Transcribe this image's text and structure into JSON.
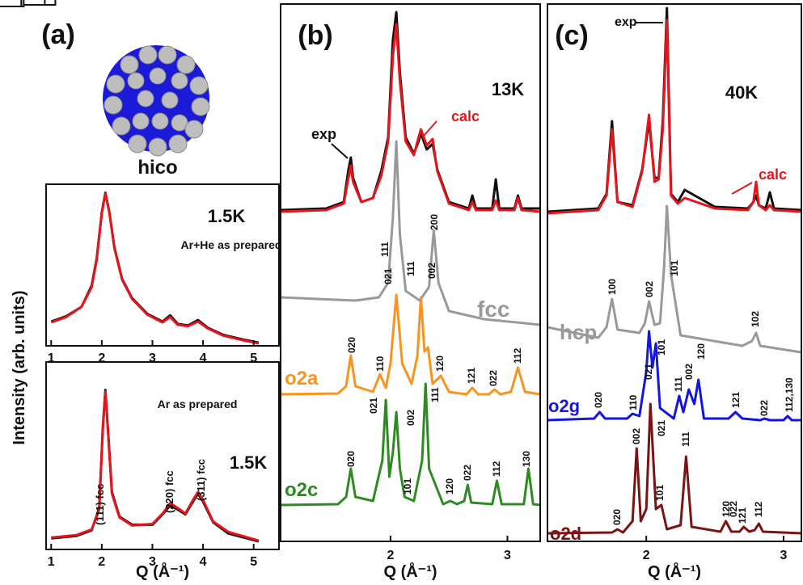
{
  "chart_data": [
    {
      "type": "line",
      "annotations": [
        "(a)",
        "hico",
        "1.5K",
        "Ar+He as prepared"
      ],
      "xlim": [
        0.9,
        5.5
      ],
      "ylim": [
        5,
        212
      ],
      "xticks": [
        1,
        2,
        3,
        4,
        5
      ],
      "series": [
        {
          "color": "#111111",
          "x": [
            1.0,
            1.3,
            1.6,
            1.8,
            1.9,
            2.0,
            2.07,
            2.15,
            2.25,
            2.4,
            2.6,
            2.9,
            3.2,
            3.35,
            3.5,
            3.7,
            3.9,
            4.1,
            4.4,
            4.8,
            5.1
          ],
          "values": [
            36,
            43,
            55,
            82,
            117,
            176,
            201,
            176,
            131,
            91,
            66,
            46,
            36,
            44,
            33,
            31,
            38,
            28,
            19,
            13,
            9
          ]
        },
        {
          "color": "#e8141b",
          "x": [
            1.0,
            1.3,
            1.6,
            1.8,
            1.9,
            2.0,
            2.07,
            2.15,
            2.25,
            2.4,
            2.6,
            2.9,
            3.2,
            3.35,
            3.5,
            3.7,
            3.9,
            4.1,
            4.4,
            4.8,
            5.1
          ],
          "values": [
            35,
            42,
            55,
            80,
            115,
            175,
            200,
            175,
            130,
            90,
            65,
            45,
            35,
            42,
            32,
            30,
            36,
            27,
            18,
            12,
            8
          ]
        }
      ]
    },
    {
      "type": "line",
      "annotations": [
        "Ar as prepared",
        "(111) fcc",
        "(220) fcc",
        "(311) fcc",
        "1.5K"
      ],
      "xlabel": "Q (Å⁻¹)",
      "ylabel": "Intensity (arb. units)",
      "xlim": [
        0.9,
        5.5
      ],
      "ylim": [
        0,
        235
      ],
      "xticks": [
        1,
        2,
        3,
        4,
        5
      ],
      "series": [
        {
          "color": "#111111",
          "x": [
            1.0,
            1.5,
            1.8,
            1.95,
            2.02,
            2.07,
            2.12,
            2.2,
            2.35,
            2.6,
            3.0,
            3.2,
            3.35,
            3.5,
            3.65,
            3.8,
            3.9,
            4.0,
            4.2,
            4.5,
            5.1
          ],
          "values": [
            14,
            17,
            24,
            52,
            152,
            200,
            152,
            72,
            41,
            31,
            31,
            44,
            55,
            50,
            44,
            60,
            70,
            60,
            34,
            20,
            10
          ]
        },
        {
          "color": "#e8141b",
          "x": [
            1.0,
            1.5,
            1.8,
            1.95,
            2.02,
            2.07,
            2.12,
            2.2,
            2.35,
            2.6,
            3.0,
            3.2,
            3.35,
            3.5,
            3.65,
            3.8,
            3.9,
            4.0,
            4.2,
            4.5,
            5.1
          ],
          "values": [
            15,
            18,
            25,
            50,
            150,
            198,
            150,
            70,
            40,
            30,
            32,
            45,
            58,
            52,
            45,
            62,
            72,
            62,
            35,
            22,
            11
          ]
        }
      ]
    },
    {
      "type": "line",
      "annotations": [
        "(b)",
        "13K"
      ],
      "xlabel": "Q (Å⁻¹)",
      "xlim": [
        1.06,
        3.28
      ],
      "ylim": [
        20,
        685
      ],
      "xticks": [
        2,
        3
      ],
      "series": [
        {
          "name": "exp",
          "color": "#111111",
          "x": [
            1.06,
            1.45,
            1.6,
            1.64,
            1.66,
            1.68,
            1.75,
            1.85,
            1.92,
            1.98,
            2.02,
            2.05,
            2.08,
            2.13,
            2.2,
            2.24,
            2.26,
            2.31,
            2.36,
            2.4,
            2.5,
            2.67,
            2.7,
            2.73,
            2.87,
            2.9,
            2.93,
            3.06,
            3.09,
            3.12,
            3.28
          ],
          "values": [
            430,
            432,
            440,
            480,
            495,
            470,
            440,
            445,
            478,
            520,
            640,
            675,
            600,
            520,
            500,
            515,
            525,
            505,
            512,
            480,
            440,
            432,
            448,
            432,
            432,
            468,
            432,
            432,
            448,
            432,
            432
          ]
        },
        {
          "name": "calc",
          "color": "#e8141b",
          "x": [
            1.06,
            1.45,
            1.6,
            1.64,
            1.66,
            1.68,
            1.75,
            1.85,
            1.92,
            1.98,
            2.02,
            2.05,
            2.08,
            2.13,
            2.2,
            2.24,
            2.26,
            2.31,
            2.36,
            2.4,
            2.5,
            2.67,
            2.7,
            2.73,
            2.87,
            2.9,
            2.93,
            3.06,
            3.09,
            3.12,
            3.28
          ],
          "values": [
            428,
            430,
            438,
            470,
            485,
            465,
            440,
            445,
            472,
            515,
            620,
            660,
            590,
            515,
            498,
            520,
            530,
            510,
            518,
            478,
            438,
            430,
            440,
            430,
            430,
            442,
            430,
            430,
            445,
            430,
            428
          ]
        },
        {
          "name": "fcc",
          "color": "#999999",
          "peak_labels": [
            "111",
            "200"
          ],
          "x": [
            1.06,
            1.7,
            1.9,
            1.98,
            2.02,
            2.05,
            2.08,
            2.13,
            2.25,
            2.33,
            2.37,
            2.41,
            2.5,
            2.8,
            3.28
          ],
          "values": [
            322,
            318,
            322,
            340,
            420,
            515,
            400,
            330,
            318,
            335,
            405,
            340,
            305,
            295,
            288
          ]
        },
        {
          "name": "o2a",
          "color": "#f7941d",
          "peak_labels": [
            "020",
            "110",
            "021",
            "111",
            "002",
            "120",
            "121",
            "022",
            "112"
          ],
          "x": [
            1.06,
            1.55,
            1.62,
            1.66,
            1.7,
            1.85,
            1.91,
            1.96,
            2.0,
            2.05,
            2.1,
            2.18,
            2.23,
            2.26,
            2.29,
            2.32,
            2.36,
            2.43,
            2.5,
            2.65,
            2.7,
            2.75,
            2.84,
            2.89,
            2.94,
            3.03,
            3.09,
            3.15,
            3.28
          ],
          "values": [
            202,
            203,
            212,
            250,
            212,
            205,
            227,
            210,
            240,
            325,
            240,
            215,
            250,
            322,
            255,
            260,
            215,
            225,
            205,
            202,
            210,
            202,
            202,
            208,
            202,
            205,
            235,
            205,
            202
          ]
        },
        {
          "name": "o2c",
          "color": "#2e8b22",
          "peak_labels": [
            "020",
            "021",
            "002",
            "101",
            "111",
            "120",
            "022",
            "112",
            "130"
          ],
          "x": [
            1.06,
            1.55,
            1.62,
            1.66,
            1.7,
            1.85,
            1.93,
            1.96,
            1.99,
            2.02,
            2.05,
            2.08,
            2.12,
            2.2,
            2.27,
            2.3,
            2.33,
            2.45,
            2.51,
            2.57,
            2.63,
            2.66,
            2.69,
            2.87,
            2.91,
            2.95,
            3.14,
            3.18,
            3.22,
            3.28
          ],
          "values": [
            65,
            66,
            75,
            110,
            75,
            70,
            120,
            195,
            100,
            130,
            180,
            110,
            75,
            70,
            120,
            215,
            110,
            66,
            70,
            66,
            70,
            90,
            68,
            66,
            95,
            66,
            66,
            110,
            66,
            65
          ]
        }
      ]
    },
    {
      "type": "line",
      "annotations": [
        "(c)",
        "40K"
      ],
      "xlabel": "Q (Å⁻¹)",
      "xlim": [
        1.28,
        3.13
      ],
      "ylim": [
        20,
        685
      ],
      "xticks": [
        2,
        3
      ],
      "series": [
        {
          "name": "exp",
          "color": "#111111",
          "x": [
            1.28,
            1.65,
            1.71,
            1.75,
            1.79,
            1.9,
            1.97,
            2.02,
            2.06,
            2.09,
            2.12,
            2.15,
            2.18,
            2.23,
            2.28,
            2.5,
            2.74,
            2.78,
            2.8,
            2.82,
            2.87,
            2.9,
            2.93,
            3.13
          ],
          "values": [
            428,
            432,
            450,
            540,
            440,
            436,
            480,
            540,
            470,
            470,
            540,
            680,
            450,
            440,
            455,
            434,
            432,
            440,
            448,
            436,
            432,
            452,
            432,
            430
          ]
        },
        {
          "name": "calc",
          "color": "#e8141b",
          "x": [
            1.28,
            1.65,
            1.71,
            1.75,
            1.79,
            1.9,
            1.97,
            2.02,
            2.06,
            2.09,
            2.12,
            2.15,
            2.18,
            2.23,
            2.28,
            2.5,
            2.74,
            2.78,
            2.8,
            2.82,
            2.87,
            2.9,
            2.93,
            3.13
          ],
          "values": [
            426,
            430,
            448,
            530,
            440,
            434,
            478,
            548,
            465,
            468,
            530,
            665,
            448,
            438,
            445,
            432,
            430,
            440,
            465,
            436,
            430,
            436,
            430,
            428
          ]
        },
        {
          "name": "hcp",
          "color": "#999999",
          "peak_labels": [
            "100",
            "002",
            "101",
            "102"
          ],
          "x": [
            1.28,
            1.65,
            1.71,
            1.75,
            1.79,
            1.95,
            1.99,
            2.02,
            2.06,
            2.1,
            2.13,
            2.15,
            2.18,
            2.25,
            2.7,
            2.77,
            2.8,
            2.83,
            3.13
          ],
          "values": [
            285,
            272,
            285,
            320,
            282,
            278,
            290,
            317,
            288,
            290,
            360,
            435,
            350,
            275,
            262,
            268,
            278,
            262,
            254
          ]
        },
        {
          "name": "o2g",
          "color": "#1515e0",
          "peak_labels": [
            "020",
            "110",
            "021",
            "101",
            "111",
            "002",
            "120",
            "121",
            "022",
            "112,130"
          ],
          "x": [
            1.28,
            1.62,
            1.66,
            1.7,
            1.86,
            1.9,
            1.95,
            2.0,
            2.02,
            2.045,
            2.07,
            2.1,
            2.2,
            2.24,
            2.27,
            2.31,
            2.35,
            2.38,
            2.42,
            2.6,
            2.65,
            2.7,
            2.83,
            2.86,
            2.9,
            3.0,
            3.03,
            3.06,
            3.13
          ],
          "values": [
            170,
            172,
            180,
            172,
            172,
            178,
            175,
            230,
            280,
            235,
            265,
            185,
            172,
            200,
            180,
            208,
            190,
            220,
            172,
            172,
            180,
            172,
            170,
            172,
            170,
            170,
            175,
            170,
            170
          ]
        },
        {
          "name": "o2d",
          "color": "#7a1414",
          "peak_labels": [
            "020",
            "002",
            "021",
            "101",
            "111",
            "120",
            "022",
            "121",
            "112"
          ],
          "x": [
            1.28,
            1.75,
            1.79,
            1.83,
            1.9,
            1.93,
            1.96,
            2.0,
            2.03,
            2.07,
            2.11,
            2.15,
            2.25,
            2.29,
            2.33,
            2.54,
            2.58,
            2.62,
            2.68,
            2.71,
            2.75,
            2.79,
            2.82,
            2.85,
            3.13
          ],
          "values": [
            30,
            31,
            35,
            31,
            45,
            135,
            45,
            60,
            190,
            60,
            65,
            35,
            40,
            125,
            38,
            32,
            45,
            32,
            32,
            38,
            32,
            34,
            42,
            32,
            30
          ]
        }
      ]
    }
  ]
}
